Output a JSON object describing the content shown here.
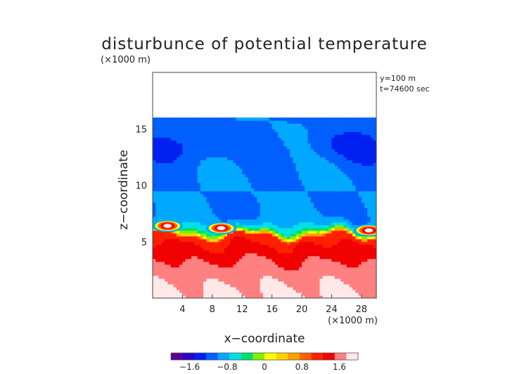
{
  "chart_data": {
    "type": "heatmap",
    "title": "disturbunce of potential temperature",
    "xlabel": "x−coordinate",
    "ylabel": "z−coordinate",
    "x_unit": "(×1000 m)",
    "y_unit": "(×1000 m)",
    "annotations": [
      "y=100 m",
      "t=74600 sec"
    ],
    "xlim": [
      0,
      30
    ],
    "ylim": [
      0,
      20
    ],
    "x_ticks": [
      4,
      8,
      12,
      16,
      20,
      24,
      28
    ],
    "x_tick_labels": [
      "4",
      "8",
      "12",
      "16",
      "20",
      "24",
      "28"
    ],
    "y_ticks": [
      5,
      10,
      15
    ],
    "y_tick_labels": [
      "5",
      "10",
      "15"
    ],
    "colorbar": {
      "range": [
        -2.0,
        2.0
      ],
      "ticks": [
        -1.6,
        -0.8,
        0,
        0.8,
        1.6
      ],
      "tick_labels": [
        "−1.6",
        "−0.8",
        "0",
        "0.8",
        "1.6"
      ],
      "colors": [
        "#5a0090",
        "#2a00c8",
        "#0020f0",
        "#0060ff",
        "#00a8ff",
        "#00e0e8",
        "#00e070",
        "#80f000",
        "#ffff00",
        "#ffd000",
        "#ffa000",
        "#ff6000",
        "#ff2000",
        "#f00000",
        "#ff8080",
        "#ffe8e8"
      ]
    },
    "field": {
      "domain_top_z": 16.0,
      "upper_layer_value": -1.0,
      "interface_z": 5.5,
      "surface_value": 1.8,
      "lower_layer_value": 1.1,
      "hot_spots": [
        {
          "x": 2.0,
          "z": 6.4
        },
        {
          "x": 9.2,
          "z": 6.2
        },
        {
          "x": 29.0,
          "z": 6.0
        }
      ]
    }
  }
}
